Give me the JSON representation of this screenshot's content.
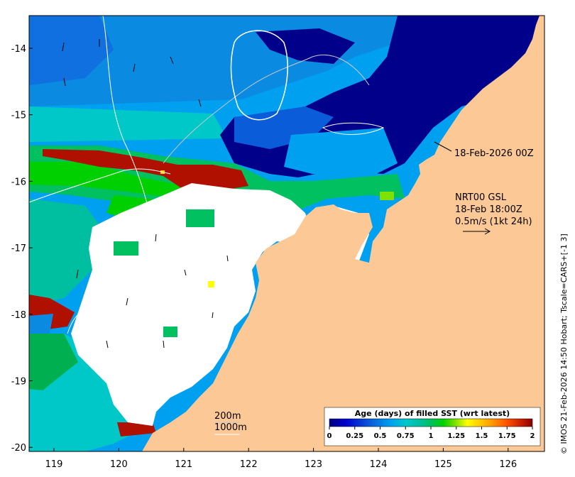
{
  "map": {
    "x_axis": {
      "ticks": [
        "119",
        "120",
        "121",
        "122",
        "123",
        "124",
        "125",
        "126"
      ]
    },
    "y_axis": {
      "ticks": [
        "-14",
        "-15",
        "-16",
        "-17",
        "-18",
        "-19",
        "-20"
      ]
    },
    "annotations": {
      "time_label": "18-Feb-2026 00Z",
      "product": "NRT00 GSL",
      "product_time": "18-Feb 18:00Z",
      "vector_scale": "0.5m/s (1kt 24h)",
      "isobath_200": "200m",
      "isobath_1000": "1000m"
    },
    "colorbar": {
      "title": "Age (days) of filled SST (wrt latest)",
      "ticks": [
        "0",
        "0.25",
        "0.5",
        "0.75",
        "1",
        "1.25",
        "1.5",
        "1.75",
        "2"
      ],
      "range": [
        0,
        2
      ],
      "colors": [
        "#00007f",
        "#0000cd",
        "#0a5cd8",
        "#00a0f0",
        "#00c8c8",
        "#00bfa0",
        "#00c060",
        "#00d000",
        "#80e000",
        "#ffff00",
        "#ffcc00",
        "#ff9900",
        "#ff5500",
        "#cc2200",
        "#8b0000"
      ]
    },
    "credit": "© IMOS 21-Feb-2026 14:50 Hobart; Tscale=CARS+[-1 3]",
    "colors": {
      "land": "#fcc896",
      "no_data": "#ffffff",
      "contour": "#ffffff"
    }
  }
}
